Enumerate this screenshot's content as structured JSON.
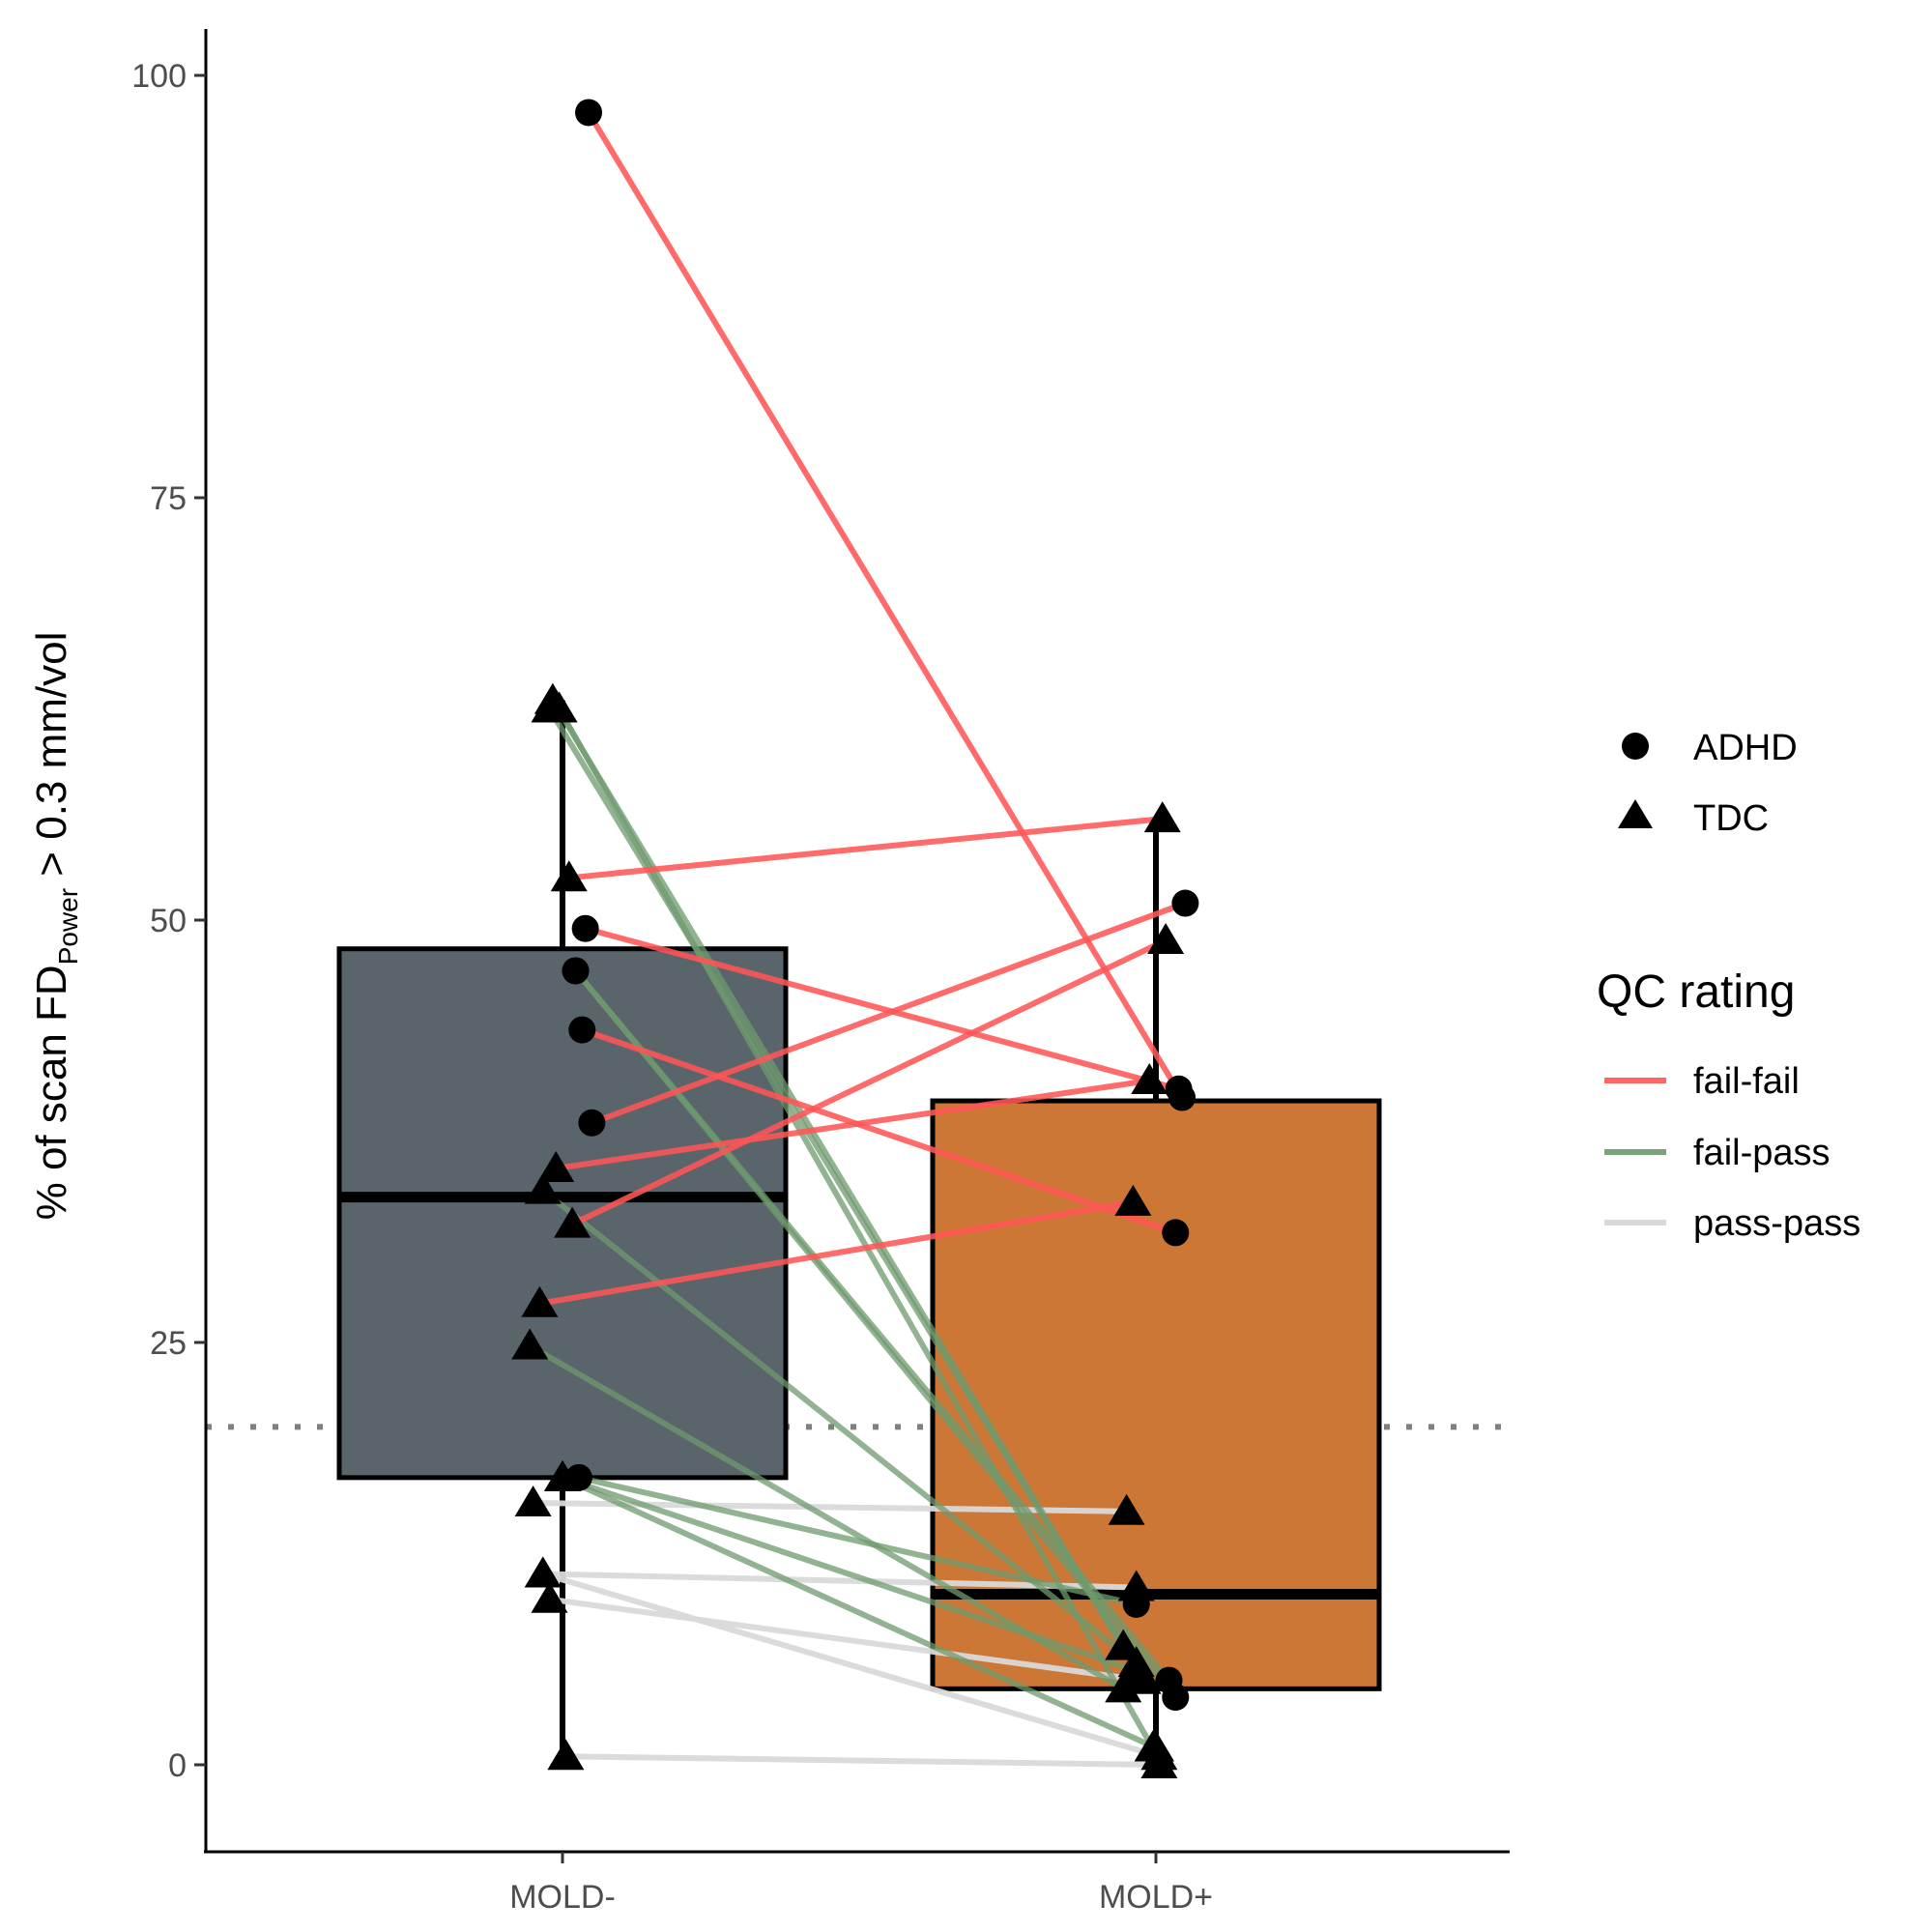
{
  "chart_data": {
    "type": "box",
    "xlabel": "",
    "ylabel": {
      "prefix": "% of scan FD",
      "subscript": "Power",
      "suffix": " > 0.3 mm/vol"
    },
    "categories": [
      "MOLD-",
      "MOLD+"
    ],
    "ylim": [
      -4.5,
      103
    ],
    "yticks": [
      0,
      25,
      50,
      75,
      100
    ],
    "threshold_line": {
      "y": 20,
      "style": "dotted",
      "color": "#808080"
    },
    "boxes": [
      {
        "category": "MOLD-",
        "q1": 17,
        "median": 33.6,
        "q3": 48.3,
        "whisker_low": 0.5,
        "whisker_high": 63,
        "fill": "#5a656b"
      },
      {
        "category": "MOLD+",
        "q1": 4.5,
        "median": 10.1,
        "q3": 39.3,
        "whisker_low": 0,
        "whisker_high": 56,
        "fill": "#cc7735"
      }
    ],
    "shape_legend": {
      "entries": [
        {
          "label": "ADHD",
          "shape": "circle"
        },
        {
          "label": "TDC",
          "shape": "triangle"
        }
      ]
    },
    "color_legend": {
      "title": "QC rating",
      "entries": [
        {
          "label": "fail-fail",
          "color": "#ff5555"
        },
        {
          "label": "fail-pass",
          "color": "#6e9a6e"
        },
        {
          "label": "pass-pass",
          "color": "#d9d9d9"
        }
      ]
    },
    "subjects": [
      {
        "group": "ADHD",
        "qc": "fail-fail",
        "y_minus": 97.8,
        "y_plus": 39.5,
        "jit_minus": 0.08,
        "jit_plus": 0.08
      },
      {
        "group": "TDC",
        "qc": "fail-pass",
        "y_minus": 62.5,
        "y_plus": 5,
        "jit_minus": -0.04,
        "jit_plus": -0.04
      },
      {
        "group": "TDC",
        "qc": "fail-pass",
        "y_minus": 62.5,
        "y_plus": 1,
        "jit_minus": -0.01,
        "jit_plus": -0.01
      },
      {
        "group": "TDC",
        "qc": "fail-fail",
        "y_minus": 52.5,
        "y_plus": 56,
        "jit_minus": 0.02,
        "jit_plus": 0.02
      },
      {
        "group": "ADHD",
        "qc": "fail-fail",
        "y_minus": 49.5,
        "y_plus": 40,
        "jit_minus": 0.07,
        "jit_plus": 0.07
      },
      {
        "group": "ADHD",
        "qc": "fail-pass",
        "y_minus": 47,
        "y_plus": 5,
        "jit_minus": 0.04,
        "jit_plus": 0.04
      },
      {
        "group": "ADHD",
        "qc": "fail-fail",
        "y_minus": 43.5,
        "y_plus": 31.5,
        "jit_minus": 0.06,
        "jit_plus": 0.06
      },
      {
        "group": "ADHD",
        "qc": "fail-fail",
        "y_minus": 38,
        "y_plus": 51,
        "jit_minus": 0.09,
        "jit_plus": 0.09
      },
      {
        "group": "TDC",
        "qc": "fail-fail",
        "y_minus": 35.3,
        "y_plus": 40.5,
        "jit_minus": -0.02,
        "jit_plus": -0.02
      },
      {
        "group": "TDC",
        "qc": "fail-pass",
        "y_minus": 34,
        "y_plus": 6,
        "jit_minus": -0.06,
        "jit_plus": -0.06
      },
      {
        "group": "TDC",
        "qc": "fail-fail",
        "y_minus": 32,
        "y_plus": 48.8,
        "jit_minus": 0.03,
        "jit_plus": 0.03
      },
      {
        "group": "TDC",
        "qc": "fail-fail",
        "y_minus": 27.3,
        "y_plus": 33.3,
        "jit_minus": -0.07,
        "jit_plus": -0.07
      },
      {
        "group": "TDC",
        "qc": "fail-pass",
        "y_minus": 24.8,
        "y_plus": 4.5,
        "jit_minus": -0.1,
        "jit_plus": -0.1
      },
      {
        "group": "TDC",
        "qc": "fail-pass",
        "y_minus": 17,
        "y_plus": 5.5,
        "jit_minus": 0,
        "jit_plus": -0.05
      },
      {
        "group": "ADHD",
        "qc": "fail-pass",
        "y_minus": 17,
        "y_plus": 9.5,
        "jit_minus": 0.05,
        "jit_plus": -0.06
      },
      {
        "group": "TDC",
        "qc": "pass-pass",
        "y_minus": 15.5,
        "y_plus": 15,
        "jit_minus": -0.09,
        "jit_plus": -0.09
      },
      {
        "group": "TDC",
        "qc": "pass-pass",
        "y_minus": 11.3,
        "y_plus": 10.5,
        "jit_minus": -0.06,
        "jit_plus": -0.06
      },
      {
        "group": "TDC",
        "qc": "pass-pass",
        "y_minus": 9.8,
        "y_plus": 5,
        "jit_minus": -0.04,
        "jit_plus": -0.04
      },
      {
        "group": "TDC",
        "qc": "fail-pass",
        "y_minus": 63,
        "y_plus": 7,
        "jit_minus": -0.03,
        "jit_plus": -0.1
      },
      {
        "group": "ADHD",
        "qc": "fail-pass",
        "y_minus": 47,
        "y_plus": 4,
        "jit_minus": 0.04,
        "jit_plus": 0.06
      },
      {
        "group": "TDC",
        "qc": "fail-pass",
        "y_minus": 17,
        "y_plus": 1,
        "jit_minus": 0,
        "jit_plus": 0.0
      },
      {
        "group": "TDC",
        "qc": "pass-pass",
        "y_minus": 0.5,
        "y_plus": 0,
        "jit_minus": 0.01,
        "jit_plus": 0.01
      },
      {
        "group": "TDC",
        "qc": "pass-pass",
        "y_minus": 11.3,
        "y_plus": 0.5,
        "jit_minus": -0.06,
        "jit_plus": 0.01
      }
    ]
  }
}
